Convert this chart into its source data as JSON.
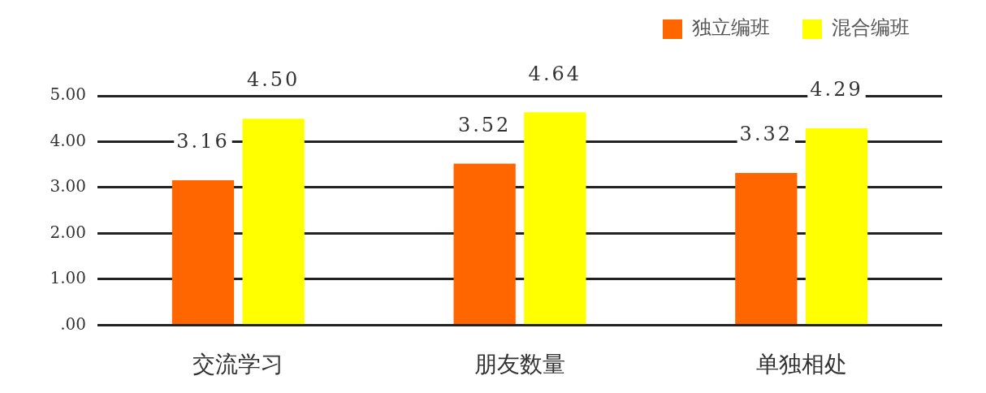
{
  "chart_data": {
    "type": "bar",
    "categories": [
      "交流学习",
      "朋友数量",
      "单独相处"
    ],
    "series": [
      {
        "name": "独立编班",
        "color": "#ff6600",
        "values": [
          3.16,
          3.52,
          3.32
        ],
        "value_labels": [
          "3.16",
          "3.52",
          "3.32"
        ]
      },
      {
        "name": "混合编班",
        "color": "#ffff00",
        "values": [
          4.5,
          4.64,
          4.29
        ],
        "value_labels": [
          "4.50",
          "4.64",
          "4.29"
        ]
      }
    ],
    "ylim": [
      0,
      5
    ],
    "yticks": [
      {
        "value": 0,
        "label": ".00"
      },
      {
        "value": 1,
        "label": "1.00"
      },
      {
        "value": 2,
        "label": "2.00"
      },
      {
        "value": 3,
        "label": "3.00"
      },
      {
        "value": 4,
        "label": "4.00"
      },
      {
        "value": 5,
        "label": "5.00"
      }
    ],
    "grid": "y",
    "legend": "top right"
  }
}
